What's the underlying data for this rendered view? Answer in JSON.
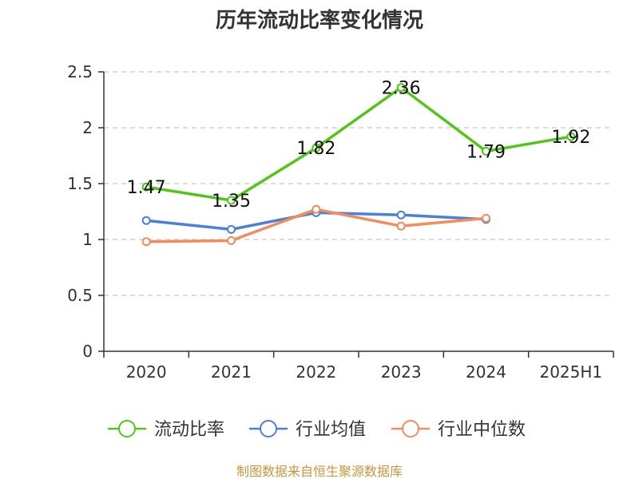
{
  "chart_data": {
    "type": "line",
    "title": "历年流动比率变化情况",
    "xlabel": "",
    "ylabel": "",
    "categories": [
      "2020",
      "2021",
      "2022",
      "2023",
      "2024",
      "2025H1"
    ],
    "ylim": [
      0,
      2.5
    ],
    "yticks": [
      "0",
      "0.5",
      "1",
      "1.5",
      "2",
      "2.5"
    ],
    "grid": true,
    "legend_position": "bottom",
    "series": [
      {
        "name": "流动比率",
        "color": "#52c41a",
        "values": [
          1.47,
          1.35,
          1.82,
          2.36,
          1.79,
          1.92
        ],
        "labels": [
          "1.47",
          "1.35",
          "1.82",
          "2.36",
          "1.79",
          "1.92"
        ]
      },
      {
        "name": "行业均值",
        "color": "#4a7fdc",
        "values": [
          1.17,
          1.09,
          1.24,
          1.22,
          1.18,
          null
        ]
      },
      {
        "name": "行业中位数",
        "color": "#f28c5a",
        "values": [
          0.98,
          0.99,
          1.27,
          1.12,
          1.19,
          null
        ]
      }
    ]
  },
  "source_text": "制图数据来自恒生聚源数据库",
  "source_color": "#c8963c"
}
